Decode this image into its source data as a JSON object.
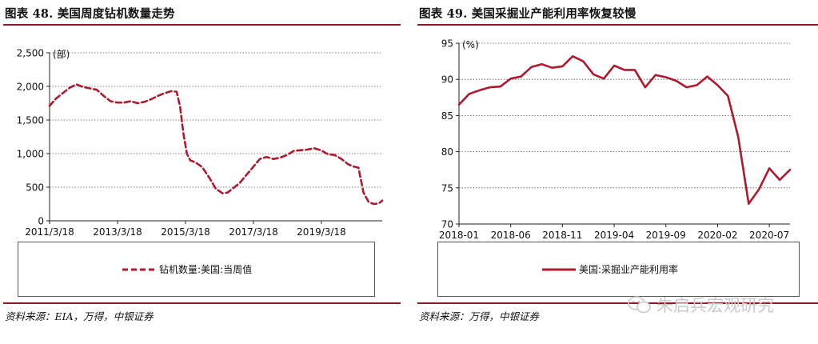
{
  "left": {
    "title": "图表 48. 美国周度钻机数量走势",
    "source": "资料来源：EIA，万得，中银证券",
    "legend": "钻机数量:美国:当周值",
    "unit": "(部)",
    "color": "#b1182e",
    "chart_data": {
      "type": "line",
      "title": "美国周度钻机数量走势",
      "ylabel": "(部)",
      "ylim": [
        0,
        2500
      ],
      "yticks": [
        0,
        500,
        1000,
        1500,
        2000,
        2500
      ],
      "ytick_labels": [
        "0",
        "500",
        "1,000",
        "1,500",
        "2,000",
        "2,500"
      ],
      "xticks": [
        2011.21,
        2013.21,
        2015.21,
        2017.21,
        2019.21
      ],
      "xtick_labels": [
        "2011/3/18",
        "2013/3/18",
        "2015/3/18",
        "2017/3/18",
        "2019/3/18"
      ],
      "xlim": [
        2011.21,
        2021.0
      ],
      "line_style": "dashed",
      "series": [
        {
          "name": "钻机数量:美国:当周值",
          "x": [
            2011.21,
            2011.4,
            2011.6,
            2011.8,
            2012.0,
            2012.2,
            2012.4,
            2012.6,
            2012.8,
            2013.0,
            2013.2,
            2013.4,
            2013.6,
            2013.8,
            2014.0,
            2014.2,
            2014.4,
            2014.6,
            2014.8,
            2014.95,
            2015.05,
            2015.15,
            2015.25,
            2015.35,
            2015.5,
            2015.7,
            2015.9,
            2016.1,
            2016.3,
            2016.45,
            2016.6,
            2016.8,
            2017.0,
            2017.2,
            2017.4,
            2017.6,
            2017.8,
            2018.0,
            2018.2,
            2018.4,
            2018.6,
            2018.8,
            2019.0,
            2019.2,
            2019.4,
            2019.6,
            2019.8,
            2020.0,
            2020.15,
            2020.3,
            2020.45,
            2020.6,
            2020.75,
            2020.9,
            2021.0
          ],
          "values": [
            1710,
            1820,
            1900,
            1980,
            2030,
            1990,
            1970,
            1950,
            1860,
            1780,
            1760,
            1760,
            1780,
            1750,
            1770,
            1810,
            1860,
            1900,
            1930,
            1920,
            1700,
            1300,
            1000,
            900,
            870,
            800,
            650,
            480,
            410,
            420,
            480,
            560,
            680,
            800,
            920,
            950,
            920,
            940,
            980,
            1040,
            1050,
            1060,
            1080,
            1050,
            990,
            980,
            920,
            840,
            810,
            790,
            420,
            280,
            250,
            260,
            300
          ]
        }
      ]
    }
  },
  "right": {
    "title": "图表 49. 美国采掘业产能利用率恢复较慢",
    "source": "资料来源：万得，中银证券",
    "legend": "美国:采掘业产能利用率",
    "unit": "(%)",
    "color": "#b1182e",
    "watermark": "朱启兵宏观研究",
    "chart_data": {
      "type": "line",
      "title": "美国采掘业产能利用率恢复较慢",
      "ylabel": "(%)",
      "ylim": [
        70,
        95
      ],
      "yticks": [
        70,
        75,
        80,
        85,
        90,
        95
      ],
      "ytick_labels": [
        "70",
        "75",
        "80",
        "85",
        "90",
        "95"
      ],
      "xlim": [
        0,
        32
      ],
      "xticks": [
        0,
        5,
        10,
        15,
        20,
        25,
        30
      ],
      "xtick_labels": [
        "2018-01",
        "2018-06",
        "2018-11",
        "2019-04",
        "2019-09",
        "2020-02",
        "2020-07"
      ],
      "line_style": "solid",
      "series": [
        {
          "name": "美国:采掘业产能利用率",
          "x": [
            0,
            1,
            2,
            3,
            4,
            5,
            6,
            7,
            8,
            9,
            10,
            11,
            12,
            13,
            14,
            15,
            16,
            17,
            18,
            19,
            20,
            21,
            22,
            23,
            24,
            25,
            26,
            27,
            28,
            29,
            30,
            31,
            32
          ],
          "values": [
            86.5,
            88.0,
            88.5,
            88.9,
            89.0,
            90.1,
            90.4,
            91.7,
            92.1,
            91.6,
            91.8,
            93.2,
            92.5,
            90.7,
            90.1,
            91.9,
            91.3,
            91.3,
            88.9,
            90.6,
            90.3,
            89.8,
            88.9,
            89.2,
            90.4,
            89.2,
            87.7,
            82.0,
            72.8,
            74.8,
            77.7,
            76.1,
            77.5
          ]
        }
      ]
    }
  }
}
